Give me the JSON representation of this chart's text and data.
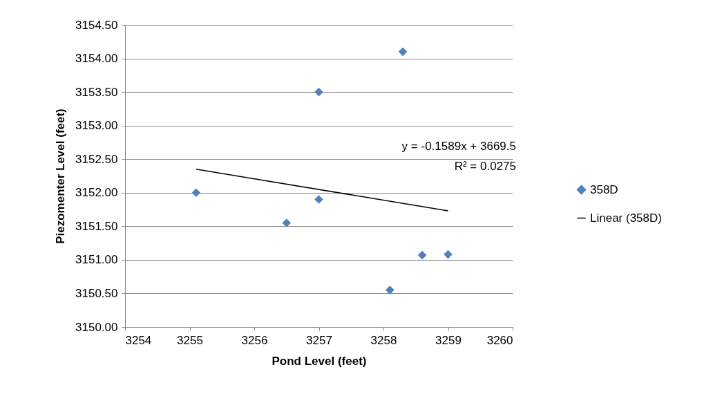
{
  "chart_data": {
    "type": "scatter",
    "xlabel": "Pond Level (feet)",
    "ylabel": "Piezomenter Level (feet)",
    "xlim": [
      3254,
      3260
    ],
    "xticks": [
      3254,
      3255,
      3256,
      3257,
      3258,
      3259,
      3260
    ],
    "ylim": [
      3150,
      3154.5
    ],
    "yticks": [
      {
        "value": 3150,
        "label": "3150.00"
      },
      {
        "value": 3150.5,
        "label": "3150.50"
      },
      {
        "value": 3151,
        "label": "3151.00"
      },
      {
        "value": 3151.5,
        "label": "3151.50"
      },
      {
        "value": 3152,
        "label": "3152.00"
      },
      {
        "value": 3152.5,
        "label": "3152.50"
      },
      {
        "value": 3153,
        "label": "3153.00"
      },
      {
        "value": 3153.5,
        "label": "3153.50"
      },
      {
        "value": 3154,
        "label": "3154.00"
      },
      {
        "value": 3154.5,
        "label": "3154.50"
      }
    ],
    "grid": "y",
    "legend": "right",
    "series": [
      {
        "name": "358D",
        "marker": "diamond",
        "color": "#4f81bd",
        "x": [
          3255.1,
          3256.5,
          3257,
          3257,
          3258.1,
          3258.3,
          3258.6,
          3259
        ],
        "values": [
          3152,
          3151.55,
          3153.5,
          3151.9,
          3150.55,
          3154.1,
          3151.07,
          3151.08
        ]
      },
      {
        "name": "Linear (358D)",
        "type": "line",
        "color": "#000000",
        "x": [
          3255.1,
          3259
        ],
        "values": [
          3152.35,
          3151.73
        ]
      }
    ],
    "annotations": [
      "y = -0.1589x + 3669.5",
      "R² = 0.0275"
    ]
  }
}
